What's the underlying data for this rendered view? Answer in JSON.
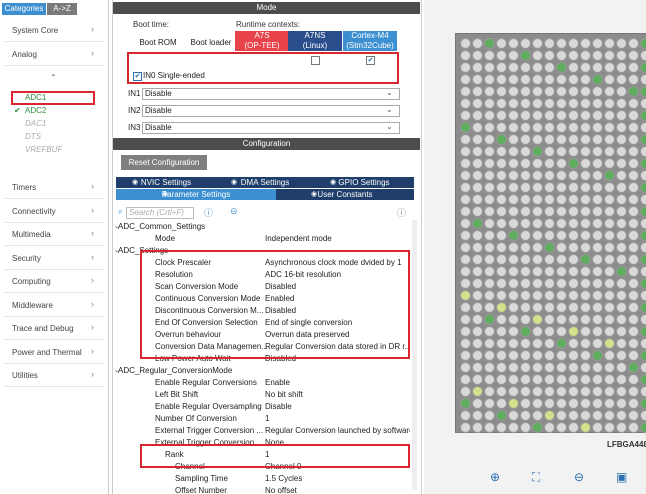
{
  "left_panel": {
    "tabs": [
      "Categories",
      "A->Z"
    ],
    "categories_top": [
      "System Core",
      "Analog"
    ],
    "analog_items": [
      {
        "label": "ADC1",
        "state": "selected"
      },
      {
        "label": "ADC2",
        "state": "enabled"
      },
      {
        "label": "DAC1",
        "state": "unavailable"
      },
      {
        "label": "DTS",
        "state": "unavailable"
      },
      {
        "label": "VREFBUF",
        "state": "unavailable"
      }
    ],
    "categories_bottom": [
      "Timers",
      "Connectivity",
      "Multimedia",
      "Security",
      "Computing",
      "Middleware",
      "Trace and Debug",
      "Power and Thermal",
      "Utilities"
    ]
  },
  "mode_panel": {
    "title": "Mode",
    "boot_time_label": "Boot time:",
    "runtime_label": "Runtime contexts:",
    "boot_columns": [
      "Boot ROM",
      "Boot loader"
    ],
    "runtime_columns": [
      {
        "line1": "A7S",
        "line2": "(OP-TEE)",
        "checked": null
      },
      {
        "line1": "A7NS",
        "line2": "(Linux)",
        "checked": false
      },
      {
        "line1": "Cortex-M4",
        "line2": "(Stm32Cube)",
        "checked": true
      }
    ],
    "in0": "IN0 Single-ended",
    "inputs": [
      {
        "label": "IN1",
        "value": "Disable"
      },
      {
        "label": "IN2",
        "value": "Disable"
      },
      {
        "label": "IN3",
        "value": "Disable"
      }
    ]
  },
  "config_panel": {
    "title": "Configuration",
    "reset_button": "Reset Configuration",
    "tabs_row1": [
      "NVIC Settings",
      "DMA Settings",
      "GPIO Settings"
    ],
    "tabs_row2": [
      "Parameter Settings",
      "User Constants"
    ],
    "search_placeholder": "Search (Crtl+F)",
    "rows": [
      {
        "name": "ADC_Common_Settings",
        "level": 0
      },
      {
        "name": "Mode",
        "value": "Independent mode",
        "level": 1
      },
      {
        "name": "ADC_Settings",
        "level": 0
      },
      {
        "name": "Clock Prescaler",
        "value": "Asynchronous clock mode dvided by 1",
        "level": 1
      },
      {
        "name": "Resolution",
        "value": "ADC 16-bit resolution",
        "level": 1
      },
      {
        "name": "Scan Conversion Mode",
        "value": "Disabled",
        "level": 1
      },
      {
        "name": "Continuous Conversion Mode",
        "value": "Enabled",
        "level": 1
      },
      {
        "name": "Discontinuous Conversion M...",
        "value": "Disabled",
        "level": 1
      },
      {
        "name": "End Of Conversion Selection",
        "value": "End of single conversion",
        "level": 1
      },
      {
        "name": "Overrun behaviour",
        "value": "Overrun data preserved",
        "level": 1
      },
      {
        "name": "Conversion Data Managemen...",
        "value": "Regular Conversion data stored in DR r...",
        "level": 1
      },
      {
        "name": "Low Power Auto Wait",
        "value": "Disabled",
        "level": 1
      },
      {
        "name": "ADC_Regular_ConversionMode",
        "level": 0
      },
      {
        "name": "Enable Regular Conversions",
        "value": "Enable",
        "level": 1
      },
      {
        "name": "Left Bit Shift",
        "value": "No bit shift",
        "level": 1
      },
      {
        "name": "Enable Regular Oversampling",
        "value": "Disable",
        "level": 1
      },
      {
        "name": "Number Of Conversion",
        "value": "1",
        "level": 1
      },
      {
        "name": "External Trigger Conversion ...",
        "value": "Regular Conversion launched by software",
        "level": 1
      },
      {
        "name": "External Trigger Conversion ...",
        "value": "None",
        "level": 1
      },
      {
        "name": "Rank",
        "value": "1",
        "level": 2
      },
      {
        "name": "Channel",
        "value": "Channel 0",
        "level": 3
      },
      {
        "name": "Sampling Time",
        "value": "1.5 Cycles",
        "level": 3
      },
      {
        "name": "Offset Number",
        "value": "No offset",
        "level": 3
      }
    ]
  },
  "pinout": {
    "package": "LFBGA448"
  }
}
